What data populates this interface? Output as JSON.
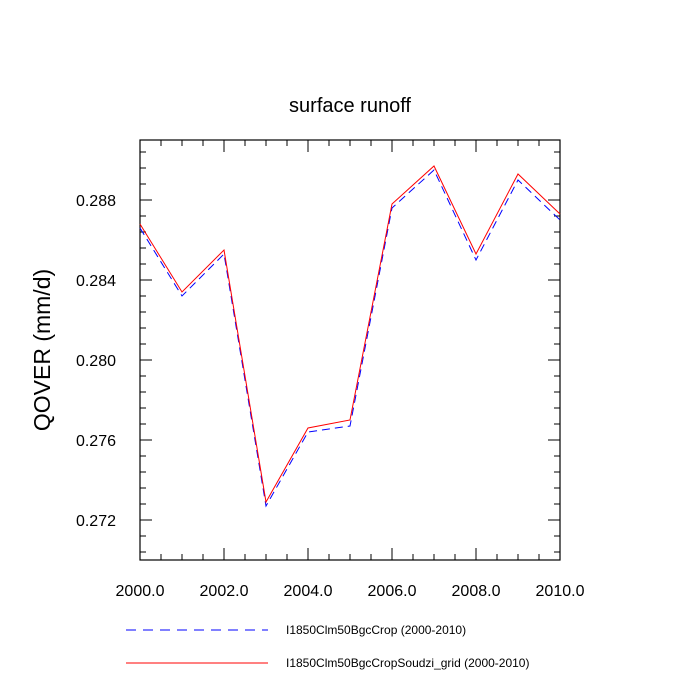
{
  "chart_data": {
    "type": "line",
    "title": "surface runoff",
    "xlabel": "",
    "ylabel": "QOVER  (mm/d)",
    "xlim": [
      2000,
      2010
    ],
    "ylim": [
      0.27,
      0.291
    ],
    "x_ticks": [
      2000,
      2002,
      2004,
      2006,
      2008,
      2010
    ],
    "x_tick_labels": [
      "2000.0",
      "2002.0",
      "2004.0",
      "2006.0",
      "2008.0",
      "2010.0"
    ],
    "y_ticks": [
      0.272,
      0.276,
      0.28,
      0.284,
      0.288
    ],
    "y_tick_labels": [
      "0.272",
      "0.276",
      "0.280",
      "0.284",
      "0.288"
    ],
    "grid": false,
    "legend_position": "bottom",
    "x": [
      2000,
      2001,
      2002,
      2003,
      2004,
      2005,
      2006,
      2007,
      2008,
      2009,
      2010
    ],
    "series": [
      {
        "name": "I1850Clm50BgcCrop (2000-2010)",
        "color": "#0000ff",
        "dash": "dashed",
        "values": [
          0.2866,
          0.2832,
          0.2853,
          0.2727,
          0.2764,
          0.2767,
          0.2876,
          0.2895,
          0.285,
          0.289,
          0.287
        ]
      },
      {
        "name": "I1850Clm50BgcCropSoudzi_grid (2000-2010)",
        "color": "#ff0000",
        "dash": "solid",
        "values": [
          0.2868,
          0.2834,
          0.2855,
          0.2729,
          0.2766,
          0.277,
          0.2878,
          0.2897,
          0.2853,
          0.2893,
          0.2873
        ]
      }
    ]
  }
}
